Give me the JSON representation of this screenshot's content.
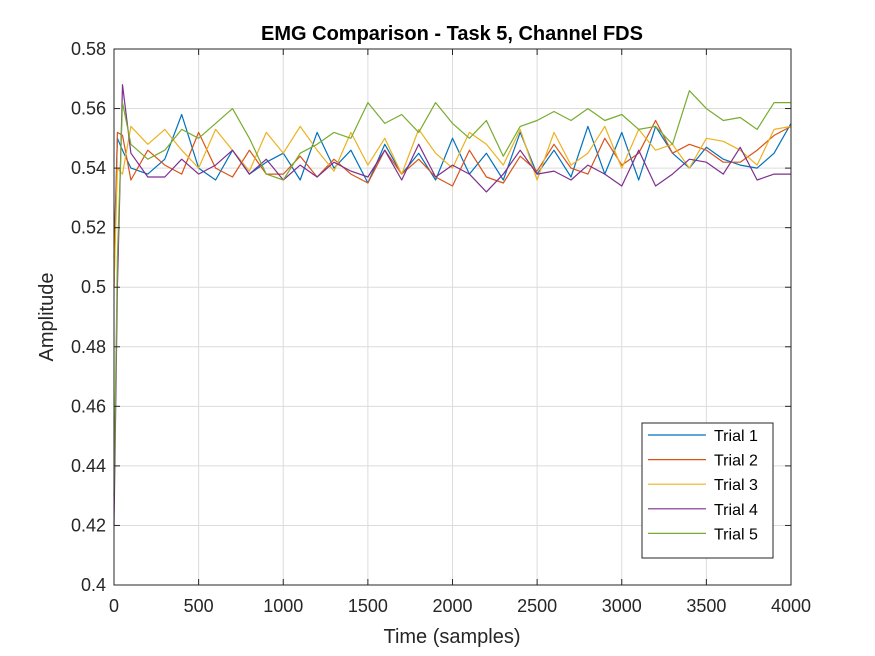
{
  "chart_data": {
    "type": "line",
    "title": "EMG Comparison - Task 5, Channel FDS",
    "xlabel": "Time (samples)",
    "ylabel": "Amplitude",
    "xlim": [
      0,
      4000
    ],
    "ylim": [
      0.4,
      0.58
    ],
    "xticks": [
      0,
      500,
      1000,
      1500,
      2000,
      2500,
      3000,
      3500,
      4000
    ],
    "xtick_labels": [
      "0",
      "500",
      "1000",
      "1500",
      "2000",
      "2500",
      "3000",
      "3500",
      "4000"
    ],
    "yticks": [
      0.4,
      0.42,
      0.44,
      0.46,
      0.48,
      0.5,
      0.52,
      0.54,
      0.56,
      0.58
    ],
    "ytick_labels": [
      "0.4",
      "0.42",
      "0.44",
      "0.46",
      "0.48",
      "0.5",
      "0.52",
      "0.54",
      "0.56",
      "0.58"
    ],
    "grid": true,
    "legend_position": "bottom-right",
    "x": [
      0,
      20,
      50,
      100,
      200,
      300,
      400,
      500,
      600,
      700,
      800,
      900,
      1000,
      1100,
      1200,
      1300,
      1400,
      1500,
      1600,
      1700,
      1800,
      1900,
      2000,
      2100,
      2200,
      2300,
      2400,
      2500,
      2600,
      2700,
      2800,
      2900,
      3000,
      3100,
      3200,
      3300,
      3400,
      3500,
      3600,
      3700,
      3800,
      3900,
      4000
    ],
    "series": [
      {
        "name": "Trial 1",
        "color": "#0072BD",
        "values": [
          0.51,
          0.55,
          0.546,
          0.54,
          0.538,
          0.543,
          0.558,
          0.54,
          0.536,
          0.546,
          0.538,
          0.542,
          0.545,
          0.536,
          0.552,
          0.54,
          0.546,
          0.535,
          0.548,
          0.538,
          0.545,
          0.536,
          0.55,
          0.538,
          0.545,
          0.536,
          0.552,
          0.538,
          0.546,
          0.537,
          0.554,
          0.538,
          0.552,
          0.536,
          0.554,
          0.545,
          0.54,
          0.547,
          0.543,
          0.541,
          0.54,
          0.545,
          0.555
        ]
      },
      {
        "name": "Trial 2",
        "color": "#D95319",
        "values": [
          0.5,
          0.552,
          0.551,
          0.536,
          0.546,
          0.541,
          0.538,
          0.552,
          0.54,
          0.537,
          0.546,
          0.538,
          0.538,
          0.544,
          0.537,
          0.543,
          0.538,
          0.535,
          0.546,
          0.538,
          0.543,
          0.537,
          0.534,
          0.546,
          0.537,
          0.535,
          0.544,
          0.539,
          0.548,
          0.54,
          0.538,
          0.55,
          0.541,
          0.545,
          0.556,
          0.545,
          0.548,
          0.546,
          0.542,
          0.542,
          0.546,
          0.551,
          0.554
        ]
      },
      {
        "name": "Trial 3",
        "color": "#EDB120",
        "values": [
          0.5,
          0.54,
          0.538,
          0.554,
          0.548,
          0.553,
          0.546,
          0.54,
          0.553,
          0.546,
          0.539,
          0.552,
          0.545,
          0.554,
          0.546,
          0.539,
          0.552,
          0.541,
          0.55,
          0.538,
          0.553,
          0.545,
          0.54,
          0.552,
          0.548,
          0.541,
          0.553,
          0.536,
          0.552,
          0.541,
          0.545,
          0.554,
          0.54,
          0.553,
          0.546,
          0.548,
          0.54,
          0.55,
          0.549,
          0.546,
          0.541,
          0.553,
          0.554
        ]
      },
      {
        "name": "Trial 4",
        "color": "#7E2F8E",
        "values": [
          0.42,
          0.5,
          0.568,
          0.545,
          0.537,
          0.537,
          0.543,
          0.538,
          0.541,
          0.546,
          0.538,
          0.543,
          0.536,
          0.541,
          0.537,
          0.542,
          0.539,
          0.537,
          0.546,
          0.536,
          0.548,
          0.537,
          0.541,
          0.538,
          0.532,
          0.538,
          0.546,
          0.538,
          0.539,
          0.536,
          0.541,
          0.538,
          0.534,
          0.546,
          0.534,
          0.538,
          0.543,
          0.542,
          0.538,
          0.547,
          0.536,
          0.538,
          0.538
        ]
      },
      {
        "name": "Trial 5",
        "color": "#77AC30",
        "values": [
          0.43,
          0.51,
          0.562,
          0.548,
          0.543,
          0.546,
          0.553,
          0.55,
          0.555,
          0.56,
          0.55,
          0.538,
          0.536,
          0.545,
          0.548,
          0.552,
          0.55,
          0.562,
          0.555,
          0.558,
          0.552,
          0.562,
          0.555,
          0.55,
          0.556,
          0.544,
          0.554,
          0.556,
          0.559,
          0.556,
          0.56,
          0.556,
          0.558,
          0.553,
          0.554,
          0.548,
          0.566,
          0.56,
          0.556,
          0.557,
          0.553,
          0.562,
          0.562
        ]
      }
    ]
  }
}
